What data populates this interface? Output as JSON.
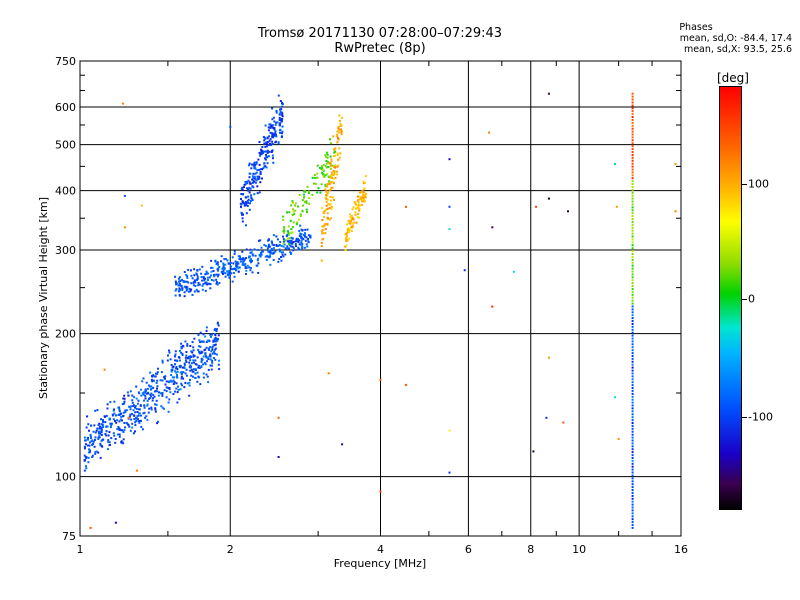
{
  "header": {
    "title_line1": "Tromsø 20171130 07:28:00–07:29:43",
    "title_line2": "RwPretec (8p)",
    "stats_head": "Phases",
    "stats_line1": "mean, sd,O: -84.4, 17.4",
    "stats_line2": "mean, sd,X:  93.5, 25.6"
  },
  "colorbar": {
    "unit": "[deg]",
    "ticks": [
      "100",
      "0",
      "-100"
    ],
    "colors": [
      "#000000",
      "#1a00c8",
      "#0050ff",
      "#00b4ff",
      "#00e6d2",
      "#00d200",
      "#ffff00",
      "#ffb400",
      "#ff0000"
    ]
  },
  "chart_data": {
    "type": "scatter",
    "title": "Tromsø 20171130 07:28:00–07:29:43",
    "subtitle": "RwPretec (8p)",
    "xlabel": "Frequency [MHz]",
    "ylabel": "Stationary phase Virtual Height [km]",
    "x_scale": "log",
    "y_scale": "log",
    "xlim": [
      1,
      16
    ],
    "ylim": [
      75,
      750
    ],
    "x_ticks": [
      1,
      2,
      4,
      6,
      8,
      10,
      16
    ],
    "x_tick_labels": [
      "1",
      "2",
      "4",
      "6",
      "8",
      "10",
      "16"
    ],
    "y_ticks": [
      75,
      100,
      200,
      300,
      400,
      500,
      600,
      750
    ],
    "y_tick_labels": [
      "75",
      "100",
      "200",
      "300",
      "400",
      "500",
      "600",
      "750"
    ],
    "grid": true,
    "color_label": "[deg]",
    "color_range": [
      -180,
      180
    ],
    "clusters": [
      {
        "name": "",
        "x_range": [
          1.02,
          1.9
        ],
        "y_range": [
          103,
          215
        ],
        "phase": -95,
        "count": 620
      },
      {
        "name": "",
        "x_range": [
          1.55,
          2.9
        ],
        "y_range": [
          235,
          340
        ],
        "phase": -90,
        "count": 420
      },
      {
        "name": "",
        "x_range": [
          2.1,
          2.55
        ],
        "y_range": [
          330,
          640
        ],
        "phase": -100,
        "count": 260
      },
      {
        "name": "",
        "x_range": [
          2.55,
          3.25
        ],
        "y_range": [
          300,
          520
        ],
        "phase": 20,
        "count": 120
      },
      {
        "name": "",
        "x_range": [
          3.05,
          3.35
        ],
        "y_range": [
          285,
          620
        ],
        "phase": 100,
        "count": 130
      },
      {
        "name": "",
        "x_range": [
          3.4,
          3.75
        ],
        "y_range": [
          300,
          430
        ],
        "phase": 95,
        "count": 110
      }
    ],
    "vertical_trace": {
      "x": 12.8,
      "y_range": [
        78,
        640
      ]
    },
    "sparse_points": [
      {
        "x": 1.22,
        "y": 610,
        "phase": 120
      },
      {
        "x": 1.23,
        "y": 390,
        "phase": -100
      },
      {
        "x": 1.23,
        "y": 335,
        "phase": 110
      },
      {
        "x": 1.33,
        "y": 372,
        "phase": 90
      },
      {
        "x": 1.05,
        "y": 78,
        "phase": 140
      },
      {
        "x": 1.18,
        "y": 80,
        "phase": -130
      },
      {
        "x": 1.12,
        "y": 168,
        "phase": 120
      },
      {
        "x": 1.25,
        "y": 133,
        "phase": 120
      },
      {
        "x": 1.3,
        "y": 103,
        "phase": 120
      },
      {
        "x": 2.0,
        "y": 545,
        "phase": -100
      },
      {
        "x": 2.5,
        "y": 133,
        "phase": 130
      },
      {
        "x": 2.5,
        "y": 110,
        "phase": -130
      },
      {
        "x": 3.15,
        "y": 165,
        "phase": 120
      },
      {
        "x": 3.35,
        "y": 117,
        "phase": -140
      },
      {
        "x": 4.0,
        "y": 160,
        "phase": 130
      },
      {
        "x": 4.0,
        "y": 93,
        "phase": 140
      },
      {
        "x": 4.5,
        "y": 370,
        "phase": 140
      },
      {
        "x": 4.5,
        "y": 156,
        "phase": 140
      },
      {
        "x": 5.5,
        "y": 466,
        "phase": -130
      },
      {
        "x": 5.5,
        "y": 370,
        "phase": -100
      },
      {
        "x": 5.5,
        "y": 332,
        "phase": -20
      },
      {
        "x": 5.5,
        "y": 125,
        "phase": 60
      },
      {
        "x": 5.5,
        "y": 102,
        "phase": -110
      },
      {
        "x": 5.9,
        "y": 272,
        "phase": -110
      },
      {
        "x": 6.6,
        "y": 530,
        "phase": 120
      },
      {
        "x": 6.7,
        "y": 335,
        "phase": -150
      },
      {
        "x": 6.7,
        "y": 228,
        "phase": 160
      },
      {
        "x": 7.4,
        "y": 270,
        "phase": -20
      },
      {
        "x": 8.1,
        "y": 113,
        "phase": -160
      },
      {
        "x": 8.2,
        "y": 370,
        "phase": 150
      },
      {
        "x": 8.7,
        "y": 640,
        "phase": -150
      },
      {
        "x": 8.7,
        "y": 385,
        "phase": -170
      },
      {
        "x": 8.7,
        "y": 178,
        "phase": 110
      },
      {
        "x": 8.6,
        "y": 133,
        "phase": -110
      },
      {
        "x": 9.3,
        "y": 130,
        "phase": 140
      },
      {
        "x": 9.5,
        "y": 362,
        "phase": -150
      },
      {
        "x": 11.8,
        "y": 455,
        "phase": -10
      },
      {
        "x": 11.9,
        "y": 370,
        "phase": 110
      },
      {
        "x": 11.8,
        "y": 147,
        "phase": -20
      },
      {
        "x": 12.0,
        "y": 120,
        "phase": 110
      },
      {
        "x": 15.6,
        "y": 455,
        "phase": 110
      },
      {
        "x": 15.6,
        "y": 362,
        "phase": 120
      }
    ]
  }
}
